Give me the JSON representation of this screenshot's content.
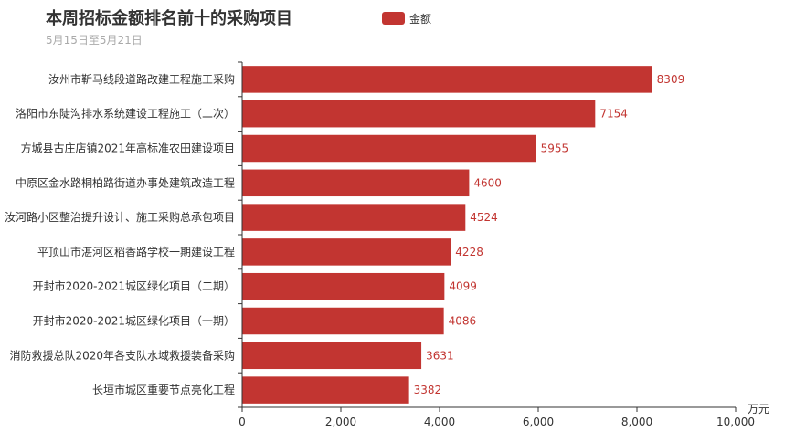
{
  "chart_data": {
    "type": "bar",
    "orientation": "horizontal",
    "title": "本周招标金额排名前十的采购项目",
    "subtitle": "5月15日至5月21日",
    "legend": {
      "position": "top-center",
      "entries": [
        "金额"
      ]
    },
    "xlabel": "万元",
    "ylabel": "",
    "xlim": [
      0,
      10000
    ],
    "xticks": [
      "0",
      "2,000",
      "4,000",
      "6,000",
      "8,000",
      "10,000"
    ],
    "grid": false,
    "categories": [
      "汝州市靳马线段道路改建工程施工采购",
      "洛阳市东陡沟排水系统建设工程施工（二次）",
      "方城县古庄店镇2021年高标准农田建设项目",
      "中原区金水路桐柏路街道办事处建筑改造工程",
      "汝河路小区整治提升设计、施工采购总承包项目",
      "平顶山市湛河区稻香路学校一期建设工程",
      "开封市2020-2021城区绿化项目（二期）",
      "开封市2020-2021城区绿化项目（一期）",
      "消防救援总队2020年各支队水域救援装备采购",
      "长垣市城区重要节点亮化工程"
    ],
    "series": [
      {
        "name": "金额",
        "color": "#c23531",
        "values": [
          8309,
          7154,
          5955,
          4600,
          4524,
          4228,
          4099,
          4086,
          3631,
          3382
        ]
      }
    ]
  }
}
